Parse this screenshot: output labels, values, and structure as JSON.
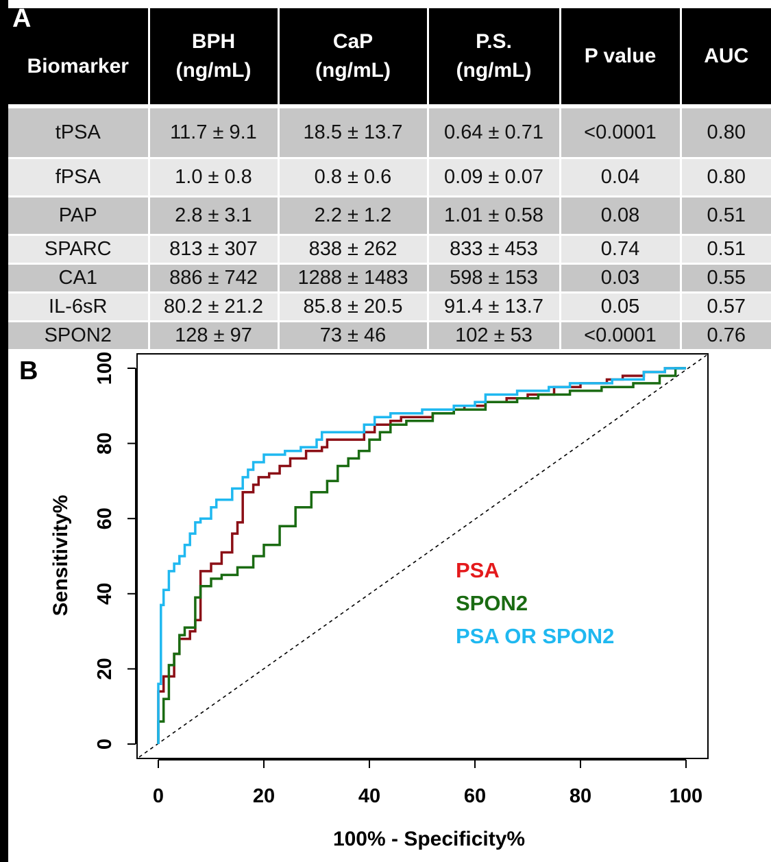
{
  "panel_a_label": "A",
  "panel_b_label": "B",
  "table": {
    "headers": [
      [
        "Biomarker"
      ],
      [
        "BPH",
        "(ng/mL)"
      ],
      [
        "CaP",
        "(ng/mL)"
      ],
      [
        "P.S.",
        "(ng/mL)"
      ],
      [
        "P value"
      ],
      [
        "AUC"
      ]
    ],
    "rows": [
      [
        "tPSA",
        "11.7 ± 9.1",
        "18.5 ± 13.7",
        "0.64 ± 0.71",
        "<0.0001",
        "0.80"
      ],
      [
        "fPSA",
        "1.0 ± 0.8",
        "0.8  ± 0.6",
        "0.09 ± 0.07",
        "0.04",
        "0.80"
      ],
      [
        "PAP",
        "2.8 ± 3.1",
        "2.2 ± 1.2",
        "1.01 ± 0.58",
        "0.08",
        "0.51"
      ],
      [
        "SPARC",
        "813 ± 307",
        "838 ± 262",
        "833 ± 453",
        "0.74",
        "0.51"
      ],
      [
        "CA1",
        "886 ± 742",
        "1288  ± 1483",
        "598 ± 153",
        "0.03",
        "0.55"
      ],
      [
        "IL-6sR",
        "80.2 ± 21.2",
        "85.8 ± 20.5",
        "91.4 ± 13.7",
        "0.05",
        "0.57"
      ],
      [
        "SPON2",
        "128 ± 97",
        "73 ± 46",
        "102 ± 53",
        "<0.0001",
        "0.76"
      ]
    ]
  },
  "chart_data": {
    "type": "line",
    "xlabel": "100% - Specificity%",
    "ylabel": "Sensitivity%",
    "xlim": [
      -4,
      104
    ],
    "ylim": [
      -4,
      104
    ],
    "xticks": [
      0,
      20,
      40,
      60,
      80,
      100
    ],
    "yticks": [
      0,
      20,
      40,
      60,
      80,
      100
    ],
    "diagonal_reference": true,
    "legend_placement": "center-right",
    "series": [
      {
        "name": "PSA",
        "color": "#8b0f16",
        "step": true,
        "points": [
          [
            0,
            0
          ],
          [
            0,
            14
          ],
          [
            1,
            14
          ],
          [
            1,
            18
          ],
          [
            3,
            18
          ],
          [
            3,
            24
          ],
          [
            4,
            24
          ],
          [
            4,
            28
          ],
          [
            6,
            28
          ],
          [
            6,
            30
          ],
          [
            7,
            30
          ],
          [
            7,
            33
          ],
          [
            8,
            33
          ],
          [
            8,
            46
          ],
          [
            10,
            46
          ],
          [
            10,
            48
          ],
          [
            12,
            48
          ],
          [
            12,
            51
          ],
          [
            14,
            51
          ],
          [
            14,
            56
          ],
          [
            15,
            56
          ],
          [
            15,
            59
          ],
          [
            16,
            59
          ],
          [
            16,
            67
          ],
          [
            18,
            67
          ],
          [
            18,
            69
          ],
          [
            19,
            69
          ],
          [
            19,
            71
          ],
          [
            21,
            71
          ],
          [
            21,
            72
          ],
          [
            23,
            72
          ],
          [
            23,
            74
          ],
          [
            25,
            74
          ],
          [
            25,
            76
          ],
          [
            28,
            76
          ],
          [
            28,
            78
          ],
          [
            31,
            78
          ],
          [
            31,
            79
          ],
          [
            32,
            79
          ],
          [
            32,
            81
          ],
          [
            39,
            81
          ],
          [
            39,
            83
          ],
          [
            41,
            83
          ],
          [
            41,
            85
          ],
          [
            44,
            85
          ],
          [
            44,
            86
          ],
          [
            46,
            86
          ],
          [
            46,
            87
          ],
          [
            52,
            87
          ],
          [
            52,
            88
          ],
          [
            56,
            88
          ],
          [
            56,
            89
          ],
          [
            58,
            89
          ],
          [
            58,
            90
          ],
          [
            62,
            90
          ],
          [
            62,
            91
          ],
          [
            66,
            91
          ],
          [
            66,
            92
          ],
          [
            70,
            92
          ],
          [
            70,
            93
          ],
          [
            75,
            93
          ],
          [
            75,
            95
          ],
          [
            80,
            95
          ],
          [
            80,
            96
          ],
          [
            85,
            96
          ],
          [
            85,
            97
          ],
          [
            88,
            97
          ],
          [
            88,
            98
          ],
          [
            92,
            98
          ],
          [
            92,
            99
          ],
          [
            96,
            99
          ],
          [
            96,
            100
          ],
          [
            100,
            100
          ]
        ]
      },
      {
        "name": "SPON2",
        "color": "#1a6b12",
        "step": true,
        "points": [
          [
            0,
            0
          ],
          [
            0,
            6
          ],
          [
            1,
            6
          ],
          [
            1,
            12
          ],
          [
            2,
            12
          ],
          [
            2,
            21
          ],
          [
            3,
            21
          ],
          [
            3,
            24
          ],
          [
            4,
            24
          ],
          [
            4,
            29
          ],
          [
            5,
            29
          ],
          [
            5,
            31
          ],
          [
            7,
            31
          ],
          [
            7,
            39
          ],
          [
            8,
            39
          ],
          [
            8,
            42
          ],
          [
            10,
            42
          ],
          [
            10,
            44
          ],
          [
            12,
            44
          ],
          [
            12,
            45
          ],
          [
            15,
            45
          ],
          [
            15,
            47
          ],
          [
            18,
            47
          ],
          [
            18,
            50
          ],
          [
            20,
            50
          ],
          [
            20,
            53
          ],
          [
            23,
            53
          ],
          [
            23,
            58
          ],
          [
            26,
            58
          ],
          [
            26,
            63
          ],
          [
            29,
            63
          ],
          [
            29,
            67
          ],
          [
            32,
            67
          ],
          [
            32,
            70
          ],
          [
            34,
            70
          ],
          [
            34,
            74
          ],
          [
            36,
            74
          ],
          [
            36,
            76
          ],
          [
            38,
            76
          ],
          [
            38,
            78
          ],
          [
            40,
            78
          ],
          [
            40,
            81
          ],
          [
            42,
            81
          ],
          [
            42,
            83
          ],
          [
            44,
            83
          ],
          [
            44,
            85
          ],
          [
            47,
            85
          ],
          [
            47,
            86
          ],
          [
            52,
            86
          ],
          [
            52,
            88
          ],
          [
            56,
            88
          ],
          [
            56,
            89
          ],
          [
            62,
            89
          ],
          [
            62,
            91
          ],
          [
            68,
            91
          ],
          [
            68,
            92
          ],
          [
            72,
            92
          ],
          [
            72,
            93
          ],
          [
            78,
            93
          ],
          [
            78,
            94
          ],
          [
            84,
            94
          ],
          [
            84,
            95
          ],
          [
            90,
            95
          ],
          [
            90,
            96
          ],
          [
            95,
            96
          ],
          [
            95,
            98
          ],
          [
            98,
            98
          ],
          [
            98,
            100
          ],
          [
            100,
            100
          ]
        ]
      },
      {
        "name": "PSA OR SPON2",
        "color": "#1fb8f0",
        "step": true,
        "points": [
          [
            0,
            0
          ],
          [
            0,
            16
          ],
          [
            0.5,
            16
          ],
          [
            0.5,
            37
          ],
          [
            1,
            37
          ],
          [
            1,
            41
          ],
          [
            2,
            41
          ],
          [
            2,
            46
          ],
          [
            3,
            46
          ],
          [
            3,
            48
          ],
          [
            4,
            48
          ],
          [
            4,
            50
          ],
          [
            5,
            50
          ],
          [
            5,
            53
          ],
          [
            6,
            53
          ],
          [
            6,
            56
          ],
          [
            7,
            56
          ],
          [
            7,
            59
          ],
          [
            8,
            59
          ],
          [
            8,
            60
          ],
          [
            10,
            60
          ],
          [
            10,
            63
          ],
          [
            11,
            63
          ],
          [
            11,
            65
          ],
          [
            14,
            65
          ],
          [
            14,
            68
          ],
          [
            16,
            68
          ],
          [
            16,
            71
          ],
          [
            17,
            71
          ],
          [
            17,
            73
          ],
          [
            18,
            73
          ],
          [
            18,
            75
          ],
          [
            20,
            75
          ],
          [
            20,
            77
          ],
          [
            24,
            77
          ],
          [
            24,
            78
          ],
          [
            27,
            78
          ],
          [
            27,
            79
          ],
          [
            30,
            79
          ],
          [
            30,
            81
          ],
          [
            31,
            81
          ],
          [
            31,
            83
          ],
          [
            39,
            83
          ],
          [
            39,
            85
          ],
          [
            41,
            85
          ],
          [
            41,
            87
          ],
          [
            44,
            87
          ],
          [
            44,
            88
          ],
          [
            50,
            88
          ],
          [
            50,
            89
          ],
          [
            56,
            89
          ],
          [
            56,
            90
          ],
          [
            60,
            90
          ],
          [
            60,
            91
          ],
          [
            62,
            91
          ],
          [
            62,
            93
          ],
          [
            68,
            93
          ],
          [
            68,
            94
          ],
          [
            74,
            94
          ],
          [
            74,
            95
          ],
          [
            78,
            95
          ],
          [
            78,
            96
          ],
          [
            86,
            96
          ],
          [
            86,
            97
          ],
          [
            92,
            97
          ],
          [
            92,
            99
          ],
          [
            96,
            99
          ],
          [
            96,
            100
          ],
          [
            100,
            100
          ]
        ]
      }
    ]
  }
}
